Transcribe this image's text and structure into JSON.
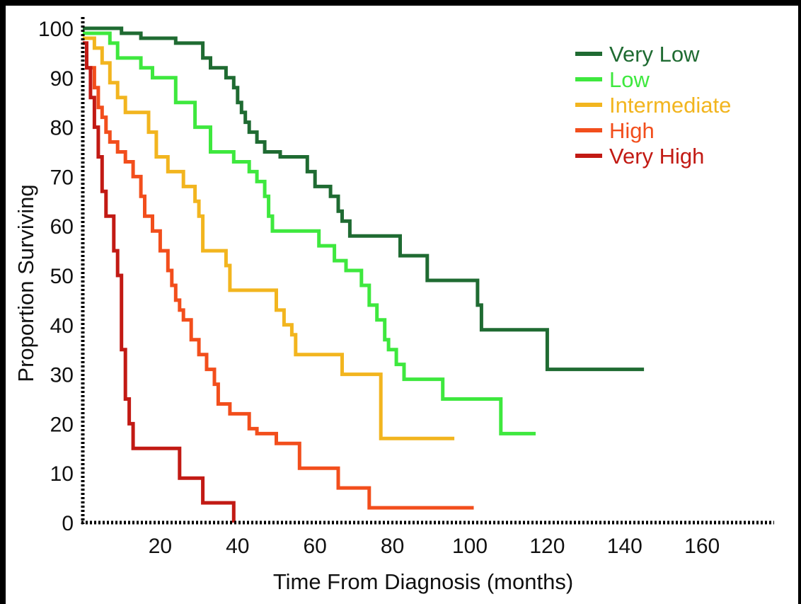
{
  "chart_data": {
    "type": "line",
    "title": "",
    "xlabel": "Time From Diagnosis (months)",
    "ylabel": "Proportion Surviving",
    "xlim": [
      0,
      180
    ],
    "ylim": [
      0,
      100
    ],
    "x_ticks": [
      20,
      40,
      60,
      80,
      100,
      120,
      140,
      160
    ],
    "y_ticks": [
      0,
      10,
      20,
      30,
      40,
      50,
      60,
      70,
      80,
      90,
      100
    ],
    "grid": false,
    "legend_position": "top-right",
    "series": [
      {
        "name": "Very Low",
        "color": "#1f6b32",
        "step": [
          [
            0,
            100
          ],
          [
            10,
            100
          ],
          [
            10,
            99
          ],
          [
            15,
            99
          ],
          [
            15,
            98
          ],
          [
            24,
            98
          ],
          [
            24,
            97
          ],
          [
            31,
            97
          ],
          [
            31,
            94
          ],
          [
            33,
            94
          ],
          [
            33,
            92
          ],
          [
            37,
            92
          ],
          [
            37,
            90
          ],
          [
            39,
            90
          ],
          [
            39,
            88
          ],
          [
            40,
            88
          ],
          [
            40,
            85
          ],
          [
            41,
            85
          ],
          [
            41,
            83
          ],
          [
            42,
            83
          ],
          [
            42,
            81
          ],
          [
            43,
            81
          ],
          [
            43,
            79
          ],
          [
            45,
            79
          ],
          [
            45,
            77
          ],
          [
            47,
            77
          ],
          [
            47,
            75
          ],
          [
            51,
            75
          ],
          [
            51,
            74
          ],
          [
            58,
            74
          ],
          [
            58,
            71
          ],
          [
            60,
            71
          ],
          [
            60,
            68
          ],
          [
            64,
            68
          ],
          [
            64,
            66
          ],
          [
            66,
            66
          ],
          [
            66,
            63
          ],
          [
            67,
            63
          ],
          [
            67,
            61
          ],
          [
            69,
            61
          ],
          [
            69,
            58
          ],
          [
            82,
            58
          ],
          [
            82,
            54
          ],
          [
            89,
            54
          ],
          [
            89,
            49
          ],
          [
            102,
            49
          ],
          [
            102,
            44
          ],
          [
            103,
            44
          ],
          [
            103,
            39
          ],
          [
            120,
            39
          ],
          [
            120,
            31
          ],
          [
            145,
            31
          ]
        ]
      },
      {
        "name": "Low",
        "color": "#3ee83e",
        "step": [
          [
            0,
            99
          ],
          [
            7,
            99
          ],
          [
            7,
            97
          ],
          [
            9,
            97
          ],
          [
            9,
            94
          ],
          [
            15,
            94
          ],
          [
            15,
            92
          ],
          [
            18,
            92
          ],
          [
            18,
            90
          ],
          [
            24,
            90
          ],
          [
            24,
            85
          ],
          [
            29,
            85
          ],
          [
            29,
            80
          ],
          [
            33,
            80
          ],
          [
            33,
            75
          ],
          [
            39,
            75
          ],
          [
            39,
            73
          ],
          [
            43,
            73
          ],
          [
            43,
            71
          ],
          [
            45,
            71
          ],
          [
            45,
            69
          ],
          [
            47,
            69
          ],
          [
            47,
            66
          ],
          [
            48,
            66
          ],
          [
            48,
            62
          ],
          [
            49,
            62
          ],
          [
            49,
            59
          ],
          [
            61,
            59
          ],
          [
            61,
            56
          ],
          [
            65,
            56
          ],
          [
            65,
            53
          ],
          [
            68,
            53
          ],
          [
            68,
            51
          ],
          [
            72,
            51
          ],
          [
            72,
            48
          ],
          [
            74,
            48
          ],
          [
            74,
            44
          ],
          [
            76,
            44
          ],
          [
            76,
            41
          ],
          [
            78,
            41
          ],
          [
            78,
            37
          ],
          [
            79,
            37
          ],
          [
            79,
            35
          ],
          [
            81,
            35
          ],
          [
            81,
            32
          ],
          [
            83,
            32
          ],
          [
            83,
            29
          ],
          [
            93,
            29
          ],
          [
            93,
            25
          ],
          [
            108,
            25
          ],
          [
            108,
            18
          ],
          [
            117,
            18
          ]
        ]
      },
      {
        "name": "Intermediate",
        "color": "#f2b51f",
        "step": [
          [
            0,
            98
          ],
          [
            3,
            98
          ],
          [
            3,
            96
          ],
          [
            5,
            96
          ],
          [
            5,
            93
          ],
          [
            7,
            93
          ],
          [
            7,
            89
          ],
          [
            9,
            89
          ],
          [
            9,
            86
          ],
          [
            11,
            86
          ],
          [
            11,
            83
          ],
          [
            17,
            83
          ],
          [
            17,
            79
          ],
          [
            19,
            79
          ],
          [
            19,
            74
          ],
          [
            22,
            74
          ],
          [
            22,
            71
          ],
          [
            26,
            71
          ],
          [
            26,
            68
          ],
          [
            29,
            68
          ],
          [
            29,
            65
          ],
          [
            30,
            65
          ],
          [
            30,
            62
          ],
          [
            31,
            62
          ],
          [
            31,
            55
          ],
          [
            37,
            55
          ],
          [
            37,
            52
          ],
          [
            38,
            52
          ],
          [
            38,
            47
          ],
          [
            50,
            47
          ],
          [
            50,
            43
          ],
          [
            52,
            43
          ],
          [
            52,
            40
          ],
          [
            54,
            40
          ],
          [
            54,
            38
          ],
          [
            55,
            38
          ],
          [
            55,
            34
          ],
          [
            67,
            34
          ],
          [
            67,
            30
          ],
          [
            77,
            30
          ],
          [
            77,
            17
          ],
          [
            96,
            17
          ]
        ]
      },
      {
        "name": "High",
        "color": "#f24e1c",
        "step": [
          [
            0,
            97
          ],
          [
            1,
            97
          ],
          [
            1,
            92
          ],
          [
            3,
            92
          ],
          [
            3,
            88
          ],
          [
            4,
            88
          ],
          [
            4,
            84
          ],
          [
            5,
            84
          ],
          [
            5,
            82
          ],
          [
            6,
            82
          ],
          [
            6,
            79
          ],
          [
            7,
            79
          ],
          [
            7,
            77
          ],
          [
            9,
            77
          ],
          [
            9,
            75
          ],
          [
            11,
            75
          ],
          [
            11,
            73
          ],
          [
            13,
            73
          ],
          [
            13,
            70
          ],
          [
            15,
            70
          ],
          [
            15,
            66
          ],
          [
            16,
            66
          ],
          [
            16,
            62
          ],
          [
            18,
            62
          ],
          [
            18,
            59
          ],
          [
            20,
            59
          ],
          [
            20,
            55
          ],
          [
            22,
            55
          ],
          [
            22,
            51
          ],
          [
            23,
            51
          ],
          [
            23,
            48
          ],
          [
            24,
            48
          ],
          [
            24,
            45
          ],
          [
            25,
            45
          ],
          [
            25,
            43
          ],
          [
            26,
            43
          ],
          [
            26,
            41
          ],
          [
            28,
            41
          ],
          [
            28,
            37
          ],
          [
            30,
            37
          ],
          [
            30,
            34
          ],
          [
            32,
            34
          ],
          [
            32,
            31
          ],
          [
            34,
            31
          ],
          [
            34,
            28
          ],
          [
            35,
            28
          ],
          [
            35,
            24
          ],
          [
            38,
            24
          ],
          [
            38,
            22
          ],
          [
            43,
            22
          ],
          [
            43,
            19
          ],
          [
            45,
            19
          ],
          [
            45,
            18
          ],
          [
            50,
            18
          ],
          [
            50,
            16
          ],
          [
            56,
            16
          ],
          [
            56,
            11
          ],
          [
            66,
            11
          ],
          [
            66,
            7
          ],
          [
            74,
            7
          ],
          [
            74,
            3
          ],
          [
            101,
            3
          ]
        ]
      },
      {
        "name": "Very High",
        "color": "#c21a14",
        "step": [
          [
            0,
            97
          ],
          [
            1,
            97
          ],
          [
            1,
            92
          ],
          [
            2,
            92
          ],
          [
            2,
            86
          ],
          [
            3,
            86
          ],
          [
            3,
            80
          ],
          [
            4,
            80
          ],
          [
            4,
            74
          ],
          [
            5,
            74
          ],
          [
            5,
            67
          ],
          [
            6,
            67
          ],
          [
            6,
            62
          ],
          [
            8,
            62
          ],
          [
            8,
            55
          ],
          [
            9,
            55
          ],
          [
            9,
            50
          ],
          [
            10,
            50
          ],
          [
            10,
            35
          ],
          [
            11,
            35
          ],
          [
            11,
            25
          ],
          [
            12,
            25
          ],
          [
            12,
            20
          ],
          [
            13,
            20
          ],
          [
            13,
            15
          ],
          [
            25,
            15
          ],
          [
            25,
            9
          ],
          [
            31,
            9
          ],
          [
            31,
            4
          ],
          [
            39,
            4
          ],
          [
            39,
            0
          ]
        ]
      }
    ]
  }
}
